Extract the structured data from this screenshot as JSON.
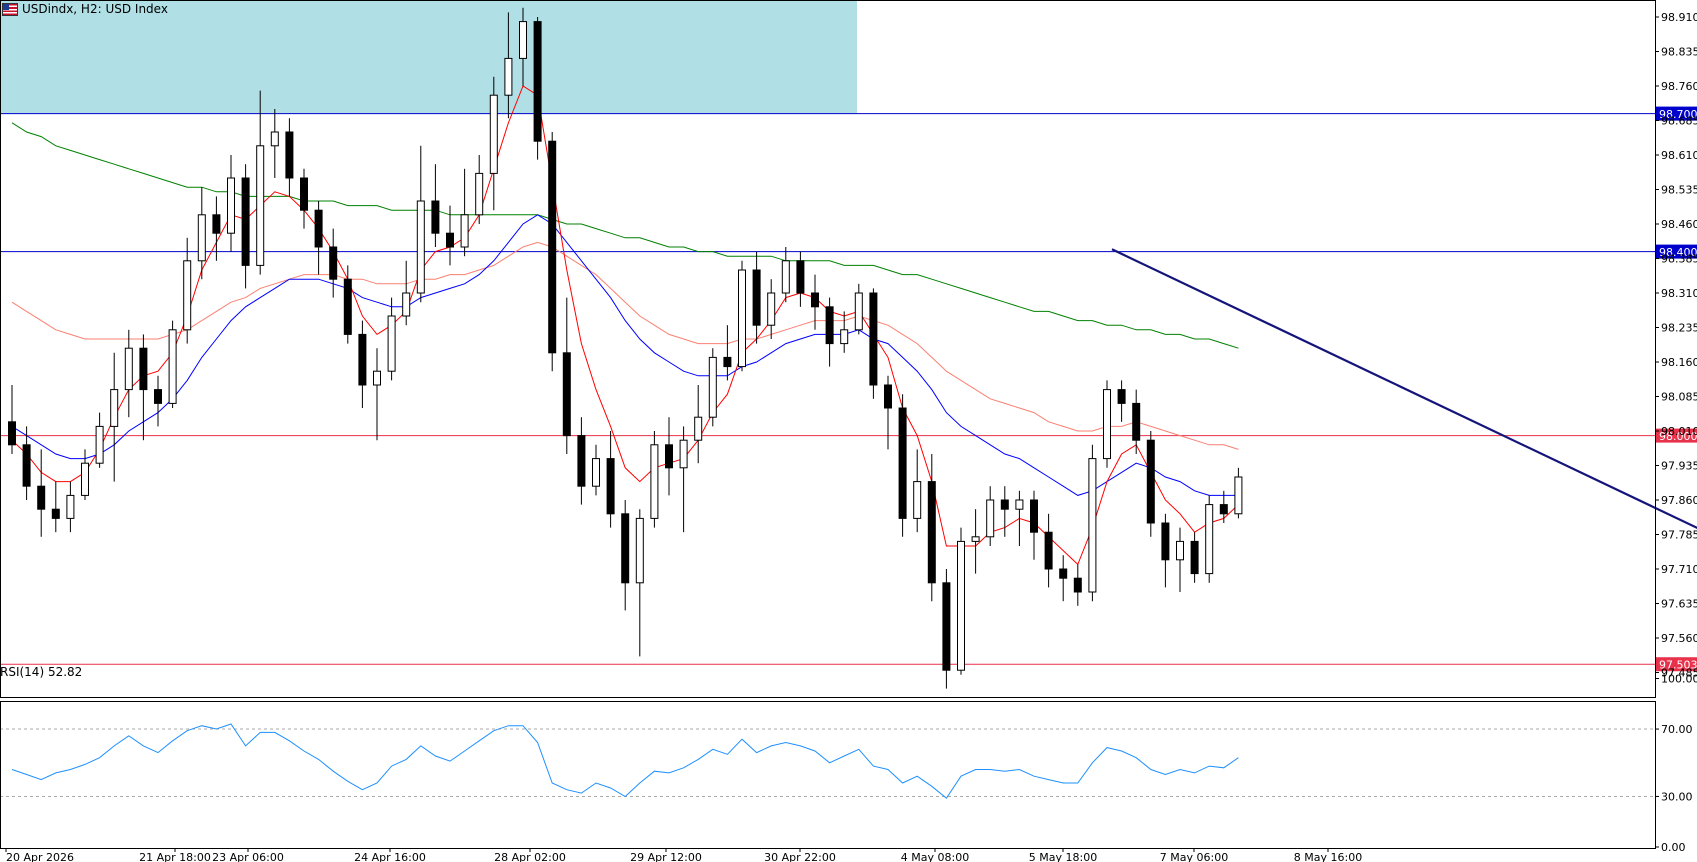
{
  "header": {
    "symbol": "USDindx",
    "timeframe": "H2",
    "description": "USD Index",
    "title": "USDindx, H2:  USD Index"
  },
  "rsi_panel": {
    "label": "RSI(14) 52.82",
    "levels": [
      "100.00",
      "70.00",
      "30.00",
      "0.00"
    ]
  },
  "price_axis": {
    "ticks": [
      "98.910",
      "98.835",
      "98.760",
      "98.685",
      "98.610",
      "98.535",
      "98.460",
      "98.385",
      "98.310",
      "98.235",
      "98.160",
      "98.085",
      "98.010",
      "97.935",
      "97.860",
      "97.785",
      "97.710",
      "97.635",
      "97.560",
      "97.485"
    ]
  },
  "time_axis": {
    "ticks": [
      "20 Apr 2026",
      "21 Apr 18:00",
      "23 Apr 06:00",
      "24 Apr 16:00",
      "28 Apr 02:00",
      "29 Apr 12:00",
      "30 Apr 22:00",
      "4 May 08:00",
      "5 May 18:00",
      "7 May 06:00",
      "8 May 16:00"
    ]
  },
  "levels": [
    {
      "label": "98.700",
      "value": 98.7,
      "color": "#0000cd"
    },
    {
      "label": "98.400",
      "value": 98.4,
      "color": "#0000cd"
    },
    {
      "label": "98.000",
      "value": 98.0,
      "color": "#e8314a"
    },
    {
      "label": "97.503",
      "value": 97.503,
      "color": "#e8314a"
    }
  ],
  "colors": {
    "zone": "#b0e0e6",
    "trendline": "#14147a",
    "ma_fast": "#ff0000",
    "ma_mid": "#0000ff",
    "ma_slow": "#fa8072",
    "ma_long": "#008000",
    "rsi": "#1e90ff",
    "candle_up": "#ffffff",
    "candle_down": "#000000"
  },
  "chart_data": {
    "type": "candlestick",
    "instrument": "USD Index",
    "timeframe": "H2",
    "price_axis_range": [
      97.43,
      98.96
    ],
    "rsi_axis_range": [
      0,
      100
    ],
    "grid": false,
    "resistance_zone": {
      "from": 98.7,
      "to": 98.96,
      "x_start": "20 Apr 2026",
      "x_end": "30 Apr 22:00"
    },
    "trendline": {
      "start": {
        "time": "4 May 12:00",
        "price": 98.405
      },
      "end": {
        "time": "10 May 00:00",
        "price": 97.755
      }
    },
    "candles": [
      {
        "o": 98.03,
        "h": 98.11,
        "l": 97.96,
        "c": 97.98
      },
      {
        "o": 97.98,
        "h": 98.02,
        "l": 97.86,
        "c": 97.89
      },
      {
        "o": 97.89,
        "h": 97.97,
        "l": 97.78,
        "c": 97.84
      },
      {
        "o": 97.84,
        "h": 97.9,
        "l": 97.79,
        "c": 97.82
      },
      {
        "o": 97.82,
        "h": 97.9,
        "l": 97.79,
        "c": 97.87
      },
      {
        "o": 97.87,
        "h": 97.97,
        "l": 97.86,
        "c": 97.94
      },
      {
        "o": 97.94,
        "h": 98.05,
        "l": 97.93,
        "c": 98.02
      },
      {
        "o": 98.02,
        "h": 98.18,
        "l": 97.9,
        "c": 98.1
      },
      {
        "o": 98.1,
        "h": 98.23,
        "l": 98.04,
        "c": 98.19
      },
      {
        "o": 98.19,
        "h": 98.22,
        "l": 97.99,
        "c": 98.1
      },
      {
        "o": 98.1,
        "h": 98.13,
        "l": 98.02,
        "c": 98.07
      },
      {
        "o": 98.07,
        "h": 98.25,
        "l": 98.06,
        "c": 98.23
      },
      {
        "o": 98.23,
        "h": 98.43,
        "l": 98.2,
        "c": 98.38
      },
      {
        "o": 98.38,
        "h": 98.54,
        "l": 98.34,
        "c": 98.48
      },
      {
        "o": 98.48,
        "h": 98.52,
        "l": 98.38,
        "c": 98.44
      },
      {
        "o": 98.44,
        "h": 98.61,
        "l": 98.4,
        "c": 98.56
      },
      {
        "o": 98.56,
        "h": 98.59,
        "l": 98.32,
        "c": 98.37
      },
      {
        "o": 98.37,
        "h": 98.75,
        "l": 98.35,
        "c": 98.63
      },
      {
        "o": 98.63,
        "h": 98.71,
        "l": 98.56,
        "c": 98.66
      },
      {
        "o": 98.66,
        "h": 98.69,
        "l": 98.52,
        "c": 98.56
      },
      {
        "o": 98.56,
        "h": 98.58,
        "l": 98.45,
        "c": 98.49
      },
      {
        "o": 98.49,
        "h": 98.51,
        "l": 98.35,
        "c": 98.41
      },
      {
        "o": 98.41,
        "h": 98.45,
        "l": 98.3,
        "c": 98.34
      },
      {
        "o": 98.34,
        "h": 98.37,
        "l": 98.2,
        "c": 98.22
      },
      {
        "o": 98.22,
        "h": 98.25,
        "l": 98.06,
        "c": 98.11
      },
      {
        "o": 98.11,
        "h": 98.19,
        "l": 97.99,
        "c": 98.14
      },
      {
        "o": 98.14,
        "h": 98.3,
        "l": 98.12,
        "c": 98.26
      },
      {
        "o": 98.26,
        "h": 98.38,
        "l": 98.24,
        "c": 98.31
      },
      {
        "o": 98.31,
        "h": 98.63,
        "l": 98.29,
        "c": 98.51
      },
      {
        "o": 98.51,
        "h": 98.59,
        "l": 98.41,
        "c": 98.44
      },
      {
        "o": 98.44,
        "h": 98.5,
        "l": 98.37,
        "c": 98.41
      },
      {
        "o": 98.41,
        "h": 98.58,
        "l": 98.39,
        "c": 98.48
      },
      {
        "o": 98.48,
        "h": 98.61,
        "l": 98.46,
        "c": 98.57
      },
      {
        "o": 98.57,
        "h": 98.78,
        "l": 98.49,
        "c": 98.74
      },
      {
        "o": 98.74,
        "h": 98.92,
        "l": 98.69,
        "c": 98.82
      },
      {
        "o": 98.82,
        "h": 98.93,
        "l": 98.76,
        "c": 98.9
      },
      {
        "o": 98.9,
        "h": 98.91,
        "l": 98.6,
        "c": 98.64
      },
      {
        "o": 98.64,
        "h": 98.66,
        "l": 98.14,
        "c": 98.18
      },
      {
        "o": 98.18,
        "h": 98.3,
        "l": 97.96,
        "c": 98.0
      },
      {
        "o": 98.0,
        "h": 98.04,
        "l": 97.85,
        "c": 97.89
      },
      {
        "o": 97.89,
        "h": 97.98,
        "l": 97.87,
        "c": 97.95
      },
      {
        "o": 97.95,
        "h": 98.01,
        "l": 97.8,
        "c": 97.83
      },
      {
        "o": 97.83,
        "h": 97.86,
        "l": 97.62,
        "c": 97.68
      },
      {
        "o": 97.68,
        "h": 97.84,
        "l": 97.52,
        "c": 97.82
      },
      {
        "o": 97.82,
        "h": 98.01,
        "l": 97.8,
        "c": 97.98
      },
      {
        "o": 97.98,
        "h": 98.04,
        "l": 97.87,
        "c": 97.93
      },
      {
        "o": 97.93,
        "h": 98.02,
        "l": 97.79,
        "c": 97.99
      },
      {
        "o": 97.99,
        "h": 98.11,
        "l": 97.94,
        "c": 98.04
      },
      {
        "o": 98.04,
        "h": 98.19,
        "l": 98.02,
        "c": 98.17
      },
      {
        "o": 98.17,
        "h": 98.24,
        "l": 98.12,
        "c": 98.15
      },
      {
        "o": 98.15,
        "h": 98.38,
        "l": 98.14,
        "c": 98.36
      },
      {
        "o": 98.36,
        "h": 98.4,
        "l": 98.2,
        "c": 98.24
      },
      {
        "o": 98.24,
        "h": 98.34,
        "l": 98.21,
        "c": 98.31
      },
      {
        "o": 98.31,
        "h": 98.41,
        "l": 98.29,
        "c": 98.38
      },
      {
        "o": 98.38,
        "h": 98.4,
        "l": 98.28,
        "c": 98.31
      },
      {
        "o": 98.31,
        "h": 98.35,
        "l": 98.23,
        "c": 98.28
      },
      {
        "o": 98.28,
        "h": 98.3,
        "l": 98.15,
        "c": 98.2
      },
      {
        "o": 98.2,
        "h": 98.27,
        "l": 98.18,
        "c": 98.23
      },
      {
        "o": 98.23,
        "h": 98.33,
        "l": 98.22,
        "c": 98.31
      },
      {
        "o": 98.31,
        "h": 98.32,
        "l": 98.08,
        "c": 98.11
      },
      {
        "o": 98.11,
        "h": 98.13,
        "l": 97.97,
        "c": 98.06
      },
      {
        "o": 98.06,
        "h": 98.09,
        "l": 97.78,
        "c": 97.82
      },
      {
        "o": 97.82,
        "h": 97.97,
        "l": 97.79,
        "c": 97.9
      },
      {
        "o": 97.9,
        "h": 97.96,
        "l": 97.64,
        "c": 97.68
      },
      {
        "o": 97.68,
        "h": 97.71,
        "l": 97.45,
        "c": 97.49
      },
      {
        "o": 97.49,
        "h": 97.8,
        "l": 97.48,
        "c": 97.77
      },
      {
        "o": 97.77,
        "h": 97.84,
        "l": 97.7,
        "c": 97.78
      },
      {
        "o": 97.78,
        "h": 97.89,
        "l": 97.76,
        "c": 97.86
      },
      {
        "o": 97.86,
        "h": 97.89,
        "l": 97.78,
        "c": 97.84
      },
      {
        "o": 97.84,
        "h": 97.88,
        "l": 97.76,
        "c": 97.86
      },
      {
        "o": 97.86,
        "h": 97.88,
        "l": 97.73,
        "c": 97.79
      },
      {
        "o": 97.79,
        "h": 97.83,
        "l": 97.67,
        "c": 97.71
      },
      {
        "o": 97.71,
        "h": 97.74,
        "l": 97.64,
        "c": 97.69
      },
      {
        "o": 97.69,
        "h": 97.72,
        "l": 97.63,
        "c": 97.66
      },
      {
        "o": 97.66,
        "h": 97.98,
        "l": 97.64,
        "c": 97.95
      },
      {
        "o": 97.95,
        "h": 98.12,
        "l": 97.93,
        "c": 98.1
      },
      {
        "o": 98.1,
        "h": 98.12,
        "l": 98.03,
        "c": 98.07
      },
      {
        "o": 98.07,
        "h": 98.1,
        "l": 97.96,
        "c": 97.99
      },
      {
        "o": 97.99,
        "h": 98.01,
        "l": 97.78,
        "c": 97.81
      },
      {
        "o": 97.81,
        "h": 97.83,
        "l": 97.67,
        "c": 97.73
      },
      {
        "o": 97.73,
        "h": 97.8,
        "l": 97.66,
        "c": 97.77
      },
      {
        "o": 97.77,
        "h": 97.79,
        "l": 97.68,
        "c": 97.7
      },
      {
        "o": 97.7,
        "h": 97.87,
        "l": 97.68,
        "c": 97.85
      },
      {
        "o": 97.85,
        "h": 97.88,
        "l": 97.81,
        "c": 97.83
      },
      {
        "o": 97.83,
        "h": 97.93,
        "l": 97.82,
        "c": 97.91
      }
    ],
    "ma_fast": [
      97.99,
      97.96,
      97.92,
      97.9,
      97.9,
      97.92,
      97.97,
      98.04,
      98.1,
      98.13,
      98.14,
      98.18,
      98.26,
      98.36,
      98.42,
      98.48,
      98.47,
      98.5,
      98.53,
      98.52,
      98.49,
      98.45,
      98.4,
      98.34,
      98.26,
      98.22,
      98.24,
      98.27,
      98.36,
      98.4,
      98.41,
      98.43,
      98.48,
      98.58,
      98.68,
      98.76,
      98.74,
      98.55,
      98.36,
      98.2,
      98.1,
      98.02,
      97.93,
      97.9,
      97.93,
      97.94,
      97.95,
      97.99,
      98.05,
      98.09,
      98.18,
      98.21,
      98.25,
      98.3,
      98.31,
      98.3,
      98.27,
      98.26,
      98.27,
      98.22,
      98.17,
      98.06,
      98.0,
      97.9,
      97.76,
      97.76,
      97.76,
      97.79,
      97.8,
      97.82,
      97.81,
      97.78,
      97.75,
      97.72,
      97.8,
      97.9,
      97.96,
      97.98,
      97.92,
      97.86,
      97.83,
      97.79,
      97.81,
      97.82,
      97.85
    ],
    "ma_mid": [
      98.02,
      98.0,
      97.98,
      97.96,
      97.95,
      97.95,
      97.96,
      97.98,
      98.01,
      98.03,
      98.05,
      98.08,
      98.12,
      98.17,
      98.21,
      98.25,
      98.28,
      98.3,
      98.32,
      98.34,
      98.34,
      98.34,
      98.33,
      98.32,
      98.3,
      98.29,
      98.28,
      98.28,
      98.3,
      98.31,
      98.32,
      98.33,
      98.35,
      98.38,
      98.42,
      98.46,
      98.48,
      98.46,
      98.42,
      98.38,
      98.34,
      98.3,
      98.25,
      98.21,
      98.18,
      98.16,
      98.14,
      98.13,
      98.13,
      98.13,
      98.15,
      98.16,
      98.18,
      98.2,
      98.21,
      98.22,
      98.22,
      98.22,
      98.23,
      98.21,
      98.2,
      98.17,
      98.14,
      98.1,
      98.05,
      98.02,
      98.0,
      97.98,
      97.96,
      97.95,
      97.93,
      97.91,
      97.89,
      97.87,
      97.88,
      97.9,
      97.92,
      97.94,
      97.93,
      97.91,
      97.9,
      97.88,
      97.87,
      97.87,
      97.87
    ],
    "ma_slow": [
      98.29,
      98.27,
      98.25,
      98.23,
      98.22,
      98.21,
      98.21,
      98.21,
      98.21,
      98.21,
      98.21,
      98.22,
      98.23,
      98.25,
      98.27,
      98.29,
      98.3,
      98.32,
      98.33,
      98.34,
      98.35,
      98.35,
      98.35,
      98.34,
      98.34,
      98.33,
      98.33,
      98.33,
      98.34,
      98.34,
      98.35,
      98.35,
      98.36,
      98.37,
      98.39,
      98.41,
      98.42,
      98.41,
      98.39,
      98.37,
      98.35,
      98.32,
      98.29,
      98.26,
      98.24,
      98.22,
      98.21,
      98.2,
      98.2,
      98.2,
      98.21,
      98.21,
      98.22,
      98.23,
      98.24,
      98.25,
      98.25,
      98.25,
      98.26,
      98.25,
      98.24,
      98.22,
      98.2,
      98.17,
      98.14,
      98.12,
      98.1,
      98.08,
      98.07,
      98.06,
      98.05,
      98.03,
      98.02,
      98.01,
      98.01,
      98.02,
      98.02,
      98.03,
      98.02,
      98.01,
      98.0,
      97.99,
      97.98,
      97.98,
      97.97
    ],
    "ma_long": [
      98.68,
      98.66,
      98.65,
      98.63,
      98.62,
      98.61,
      98.6,
      98.59,
      98.58,
      98.57,
      98.56,
      98.55,
      98.54,
      98.54,
      98.53,
      98.53,
      98.52,
      98.52,
      98.52,
      98.52,
      98.51,
      98.51,
      98.51,
      98.5,
      98.5,
      98.5,
      98.49,
      98.49,
      98.49,
      98.49,
      98.48,
      98.48,
      98.48,
      98.48,
      98.48,
      98.48,
      98.48,
      98.47,
      98.46,
      98.46,
      98.45,
      98.44,
      98.43,
      98.43,
      98.42,
      98.41,
      98.41,
      98.4,
      98.4,
      98.39,
      98.39,
      98.39,
      98.39,
      98.38,
      98.38,
      98.38,
      98.38,
      98.37,
      98.37,
      98.37,
      98.36,
      98.35,
      98.35,
      98.34,
      98.33,
      98.32,
      98.31,
      98.3,
      98.29,
      98.28,
      98.27,
      98.27,
      98.26,
      98.25,
      98.25,
      98.24,
      98.24,
      98.23,
      98.23,
      98.22,
      98.22,
      98.21,
      98.21,
      98.2,
      98.19
    ],
    "rsi": [
      46,
      43,
      40,
      44,
      46,
      49,
      53,
      60,
      66,
      60,
      56,
      63,
      69,
      72,
      70,
      73,
      60,
      68,
      68,
      63,
      57,
      52,
      45,
      39,
      34,
      38,
      48,
      52,
      60,
      54,
      51,
      57,
      63,
      69,
      72,
      72,
      62,
      38,
      34,
      32,
      38,
      35,
      30,
      38,
      45,
      44,
      47,
      52,
      58,
      55,
      64,
      56,
      60,
      62,
      60,
      57,
      50,
      54,
      58,
      48,
      46,
      38,
      42,
      36,
      29,
      42,
      46,
      46,
      45,
      46,
      42,
      40,
      38,
      38,
      50,
      59,
      57,
      53,
      46,
      43,
      46,
      44,
      48,
      47,
      53
    ]
  }
}
